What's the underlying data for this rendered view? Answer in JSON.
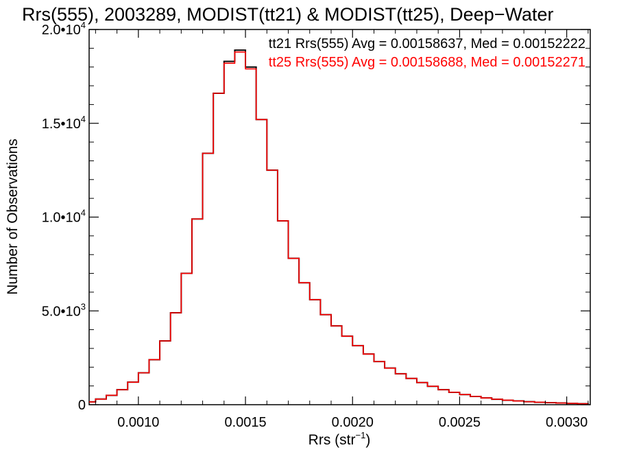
{
  "chart_data": {
    "type": "line",
    "step": true,
    "title": "Rrs(555), 2003289, MODIST(tt21) & MODIST(tt25), Deep−Water",
    "xlabel": "Rrs (str",
    "xlabel_sup": "−1",
    "xlabel_end": ")",
    "ylabel": "Number of Observations",
    "xlim": [
      0.00077,
      0.00311
    ],
    "ylim": [
      0,
      20000
    ],
    "x_ticks": [
      0.001,
      0.0015,
      0.002,
      0.0025,
      0.003
    ],
    "x_tick_labels": [
      "0.0010",
      "0.0015",
      "0.0020",
      "0.0025",
      "0.0030"
    ],
    "y_ticks": [
      0,
      5000,
      10000,
      15000,
      20000
    ],
    "y_tick_labels": [
      {
        "mant": "0",
        "exp": ""
      },
      {
        "mant": "5.0•10",
        "exp": "3"
      },
      {
        "mant": "1.0•10",
        "exp": "4"
      },
      {
        "mant": "1.5•10",
        "exp": "4"
      },
      {
        "mant": "2.0•10",
        "exp": "4"
      }
    ],
    "legend_position": "top-right",
    "series": [
      {
        "name": "tt21",
        "label": "tt21 Rrs(555) Avg = 0.00158637, Med = 0.00152222",
        "color": "#000000",
        "x": [
          0.00077,
          0.0008,
          0.00085,
          0.0009,
          0.00095,
          0.001,
          0.00105,
          0.0011,
          0.00115,
          0.0012,
          0.00125,
          0.0013,
          0.00135,
          0.0014,
          0.00145,
          0.0015,
          0.00155,
          0.0016,
          0.00165,
          0.0017,
          0.00175,
          0.0018,
          0.00185,
          0.0019,
          0.00195,
          0.002,
          0.00205,
          0.0021,
          0.00215,
          0.0022,
          0.00225,
          0.0023,
          0.00235,
          0.0024,
          0.00245,
          0.0025,
          0.00255,
          0.0026,
          0.00265,
          0.0027,
          0.00275,
          0.0028,
          0.00285,
          0.0029,
          0.00295,
          0.003,
          0.00305,
          0.0031
        ],
        "y": [
          150,
          300,
          500,
          800,
          1200,
          1700,
          2400,
          3400,
          4900,
          7000,
          9900,
          13400,
          16600,
          18300,
          18900,
          18000,
          15200,
          12500,
          9800,
          7800,
          6500,
          5600,
          4800,
          4200,
          3650,
          3150,
          2700,
          2300,
          1950,
          1650,
          1400,
          1180,
          980,
          800,
          660,
          540,
          440,
          360,
          290,
          240,
          200,
          160,
          130,
          110,
          90,
          70,
          55,
          40
        ]
      },
      {
        "name": "tt25",
        "label": "tt25 Rrs(555) Avg = 0.00158688, Med = 0.00152271",
        "color": "#ff0000",
        "x": [
          0.00077,
          0.0008,
          0.00085,
          0.0009,
          0.00095,
          0.001,
          0.00105,
          0.0011,
          0.00115,
          0.0012,
          0.00125,
          0.0013,
          0.00135,
          0.0014,
          0.00145,
          0.0015,
          0.00155,
          0.0016,
          0.00165,
          0.0017,
          0.00175,
          0.0018,
          0.00185,
          0.0019,
          0.00195,
          0.002,
          0.00205,
          0.0021,
          0.00215,
          0.0022,
          0.00225,
          0.0023,
          0.00235,
          0.0024,
          0.00245,
          0.0025,
          0.00255,
          0.0026,
          0.00265,
          0.0027,
          0.00275,
          0.0028,
          0.00285,
          0.0029,
          0.00295,
          0.003,
          0.00305,
          0.0031
        ],
        "y": [
          150,
          300,
          500,
          800,
          1200,
          1700,
          2400,
          3400,
          4900,
          7000,
          9900,
          13400,
          16600,
          18200,
          18800,
          17900,
          15200,
          12500,
          9800,
          7800,
          6500,
          5600,
          4800,
          4200,
          3650,
          3150,
          2700,
          2300,
          1950,
          1650,
          1400,
          1180,
          980,
          800,
          660,
          540,
          440,
          360,
          290,
          240,
          200,
          160,
          130,
          110,
          90,
          70,
          55,
          40
        ]
      }
    ]
  }
}
